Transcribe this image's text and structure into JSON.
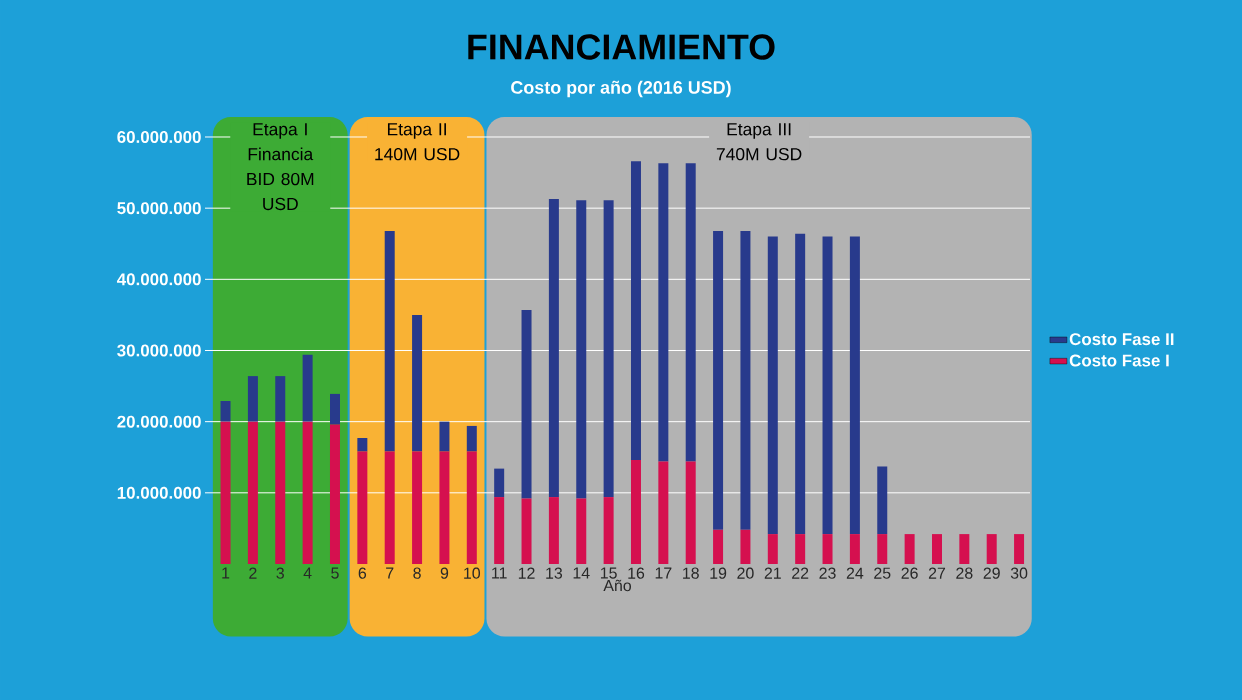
{
  "chart_data": {
    "type": "bar",
    "stacked": true,
    "title": "FINANCIAMIENTO",
    "subtitle": "Costo por año (2016 USD)",
    "xlabel": "Año",
    "categories": [
      "1",
      "2",
      "3",
      "4",
      "5",
      "6",
      "7",
      "8",
      "9",
      "10",
      "11",
      "12",
      "13",
      "14",
      "15",
      "16",
      "17",
      "18",
      "19",
      "20",
      "21",
      "22",
      "23",
      "24",
      "25",
      "26",
      "27",
      "28",
      "29",
      "30"
    ],
    "series": [
      {
        "name": "Costo Fase I",
        "color": "#d5104f",
        "values": [
          20000000,
          20000000,
          20000000,
          20000000,
          19600000,
          15800000,
          15800000,
          15800000,
          15800000,
          15800000,
          9400000,
          9200000,
          9400000,
          9200000,
          9400000,
          14600000,
          14400000,
          14400000,
          4800000,
          4800000,
          4200000,
          4200000,
          4200000,
          4200000,
          4200000,
          4200000,
          4200000,
          4200000,
          4200000,
          4200000
        ]
      },
      {
        "name": "Costo Fase II",
        "color": "#283a8c",
        "values": [
          2900000,
          6400000,
          6400000,
          9400000,
          4300000,
          1900000,
          31000000,
          19200000,
          4200000,
          3600000,
          4000000,
          26500000,
          41900000,
          41900000,
          41700000,
          42000000,
          41900000,
          41900000,
          42000000,
          42000000,
          41800000,
          42200000,
          41800000,
          41800000,
          9500000,
          0,
          0,
          0,
          0,
          0
        ]
      }
    ],
    "ylim": [
      0,
      60000000
    ],
    "yticks": [
      {
        "value": 10000000,
        "label": "10.000.000"
      },
      {
        "value": 20000000,
        "label": "20.000.000"
      },
      {
        "value": 30000000,
        "label": "30.000.000"
      },
      {
        "value": 40000000,
        "label": "40.000.000"
      },
      {
        "value": 50000000,
        "label": "50.000.000"
      },
      {
        "value": 60000000,
        "label": "60.000.000"
      }
    ],
    "grid": "y",
    "legend": "right",
    "bands": [
      {
        "axis": "x",
        "from": "1",
        "to": "5",
        "label": "Etapa I Financia BID 80M USD",
        "color": "#3dab35"
      },
      {
        "axis": "x",
        "from": "6",
        "to": "10",
        "label": "Etapa II 140M USD",
        "color": "#f9b234"
      },
      {
        "axis": "x",
        "from": "11",
        "to": "30",
        "label": "Etapa III 740M USD",
        "color": "#b3b3b3"
      }
    ]
  }
}
